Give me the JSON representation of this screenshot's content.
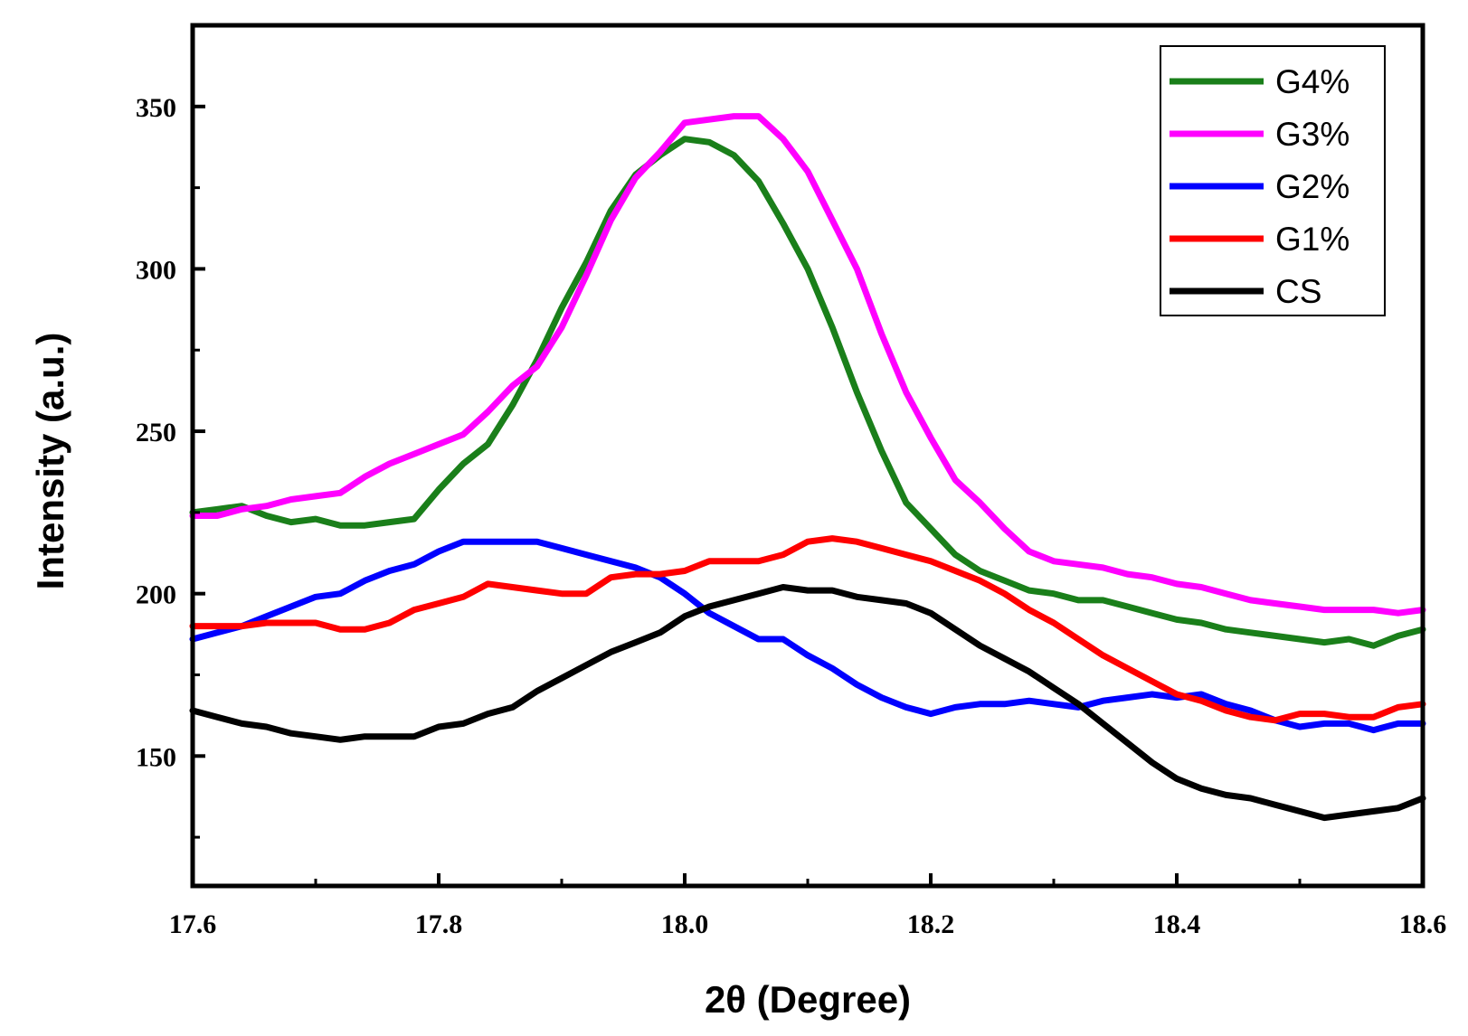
{
  "chart_data": {
    "type": "line",
    "title": "",
    "xlabel": "2θ (Degree)",
    "ylabel": "Intensity (a.u.)",
    "xlim": [
      17.6,
      18.6
    ],
    "ylim": [
      110,
      375
    ],
    "xticks": [
      17.6,
      17.8,
      18.0,
      18.2,
      18.4,
      18.6
    ],
    "xtick_labels": [
      "17.6",
      "17.8",
      "18.0",
      "18.2",
      "18.4",
      "18.6"
    ],
    "yticks": [
      150,
      200,
      250,
      300,
      350
    ],
    "ytick_labels": [
      "150",
      "200",
      "250",
      "300",
      "350"
    ],
    "grid": false,
    "legend_position": "top-right",
    "series": [
      {
        "name": "G4%",
        "color": "#1a7f1a",
        "x": [
          17.6,
          17.62,
          17.64,
          17.66,
          17.68,
          17.7,
          17.72,
          17.74,
          17.76,
          17.78,
          17.8,
          17.82,
          17.84,
          17.86,
          17.88,
          17.9,
          17.92,
          17.94,
          17.96,
          17.98,
          18.0,
          18.02,
          18.04,
          18.06,
          18.08,
          18.1,
          18.12,
          18.14,
          18.16,
          18.18,
          18.2,
          18.22,
          18.24,
          18.26,
          18.28,
          18.3,
          18.32,
          18.34,
          18.36,
          18.38,
          18.4,
          18.42,
          18.44,
          18.46,
          18.48,
          18.5,
          18.52,
          18.54,
          18.56,
          18.58,
          18.6
        ],
        "y": [
          225,
          226,
          227,
          224,
          222,
          223,
          221,
          221,
          222,
          223,
          232,
          240,
          246,
          258,
          272,
          288,
          302,
          318,
          329,
          335,
          340,
          339,
          335,
          327,
          314,
          300,
          282,
          262,
          244,
          228,
          220,
          212,
          207,
          204,
          201,
          200,
          198,
          198,
          196,
          194,
          192,
          191,
          189,
          188,
          187,
          186,
          185,
          186,
          184,
          187,
          189
        ]
      },
      {
        "name": "G3%",
        "color": "#ff00ff",
        "x": [
          17.6,
          17.62,
          17.64,
          17.66,
          17.68,
          17.7,
          17.72,
          17.74,
          17.76,
          17.78,
          17.8,
          17.82,
          17.84,
          17.86,
          17.88,
          17.9,
          17.92,
          17.94,
          17.96,
          17.98,
          18.0,
          18.02,
          18.04,
          18.06,
          18.08,
          18.1,
          18.12,
          18.14,
          18.16,
          18.18,
          18.2,
          18.22,
          18.24,
          18.26,
          18.28,
          18.3,
          18.32,
          18.34,
          18.36,
          18.38,
          18.4,
          18.42,
          18.44,
          18.46,
          18.48,
          18.5,
          18.52,
          18.54,
          18.56,
          18.58,
          18.6
        ],
        "y": [
          224,
          224,
          226,
          227,
          229,
          230,
          231,
          236,
          240,
          243,
          246,
          249,
          256,
          264,
          270,
          282,
          298,
          315,
          328,
          336,
          345,
          346,
          347,
          347,
          340,
          330,
          315,
          300,
          280,
          262,
          248,
          235,
          228,
          220,
          213,
          210,
          209,
          208,
          206,
          205,
          203,
          202,
          200,
          198,
          197,
          196,
          195,
          195,
          195,
          194,
          195
        ]
      },
      {
        "name": "G2%",
        "color": "#0000ff",
        "x": [
          17.6,
          17.62,
          17.64,
          17.66,
          17.68,
          17.7,
          17.72,
          17.74,
          17.76,
          17.78,
          17.8,
          17.82,
          17.84,
          17.86,
          17.88,
          17.9,
          17.92,
          17.94,
          17.96,
          17.98,
          18.0,
          18.02,
          18.04,
          18.06,
          18.08,
          18.1,
          18.12,
          18.14,
          18.16,
          18.18,
          18.2,
          18.22,
          18.24,
          18.26,
          18.28,
          18.3,
          18.32,
          18.34,
          18.36,
          18.38,
          18.4,
          18.42,
          18.44,
          18.46,
          18.48,
          18.5,
          18.52,
          18.54,
          18.56,
          18.58,
          18.6
        ],
        "y": [
          186,
          188,
          190,
          193,
          196,
          199,
          200,
          204,
          207,
          209,
          213,
          216,
          216,
          216,
          216,
          214,
          212,
          210,
          208,
          205,
          200,
          194,
          190,
          186,
          186,
          181,
          177,
          172,
          168,
          165,
          163,
          165,
          166,
          166,
          167,
          166,
          165,
          167,
          168,
          169,
          168,
          169,
          166,
          164,
          161,
          159,
          160,
          160,
          158,
          160,
          160
        ]
      },
      {
        "name": "G1%",
        "color": "#ff0000",
        "x": [
          17.6,
          17.62,
          17.64,
          17.66,
          17.68,
          17.7,
          17.72,
          17.74,
          17.76,
          17.78,
          17.8,
          17.82,
          17.84,
          17.86,
          17.88,
          17.9,
          17.92,
          17.94,
          17.96,
          17.98,
          18.0,
          18.02,
          18.04,
          18.06,
          18.08,
          18.1,
          18.12,
          18.14,
          18.16,
          18.18,
          18.2,
          18.22,
          18.24,
          18.26,
          18.28,
          18.3,
          18.32,
          18.34,
          18.36,
          18.38,
          18.4,
          18.42,
          18.44,
          18.46,
          18.48,
          18.5,
          18.52,
          18.54,
          18.56,
          18.58,
          18.6
        ],
        "y": [
          190,
          190,
          190,
          191,
          191,
          191,
          189,
          189,
          191,
          195,
          197,
          199,
          203,
          202,
          201,
          200,
          200,
          205,
          206,
          206,
          207,
          210,
          210,
          210,
          212,
          216,
          217,
          216,
          214,
          212,
          210,
          207,
          204,
          200,
          195,
          191,
          186,
          181,
          177,
          173,
          169,
          167,
          164,
          162,
          161,
          163,
          163,
          162,
          162,
          165,
          166
        ]
      },
      {
        "name": "CS",
        "color": "#000000",
        "x": [
          17.6,
          17.62,
          17.64,
          17.66,
          17.68,
          17.7,
          17.72,
          17.74,
          17.76,
          17.78,
          17.8,
          17.82,
          17.84,
          17.86,
          17.88,
          17.9,
          17.92,
          17.94,
          17.96,
          17.98,
          18.0,
          18.02,
          18.04,
          18.06,
          18.08,
          18.1,
          18.12,
          18.14,
          18.16,
          18.18,
          18.2,
          18.22,
          18.24,
          18.26,
          18.28,
          18.3,
          18.32,
          18.34,
          18.36,
          18.38,
          18.4,
          18.42,
          18.44,
          18.46,
          18.48,
          18.5,
          18.52,
          18.54,
          18.56,
          18.58,
          18.6
        ],
        "y": [
          164,
          162,
          160,
          159,
          157,
          156,
          155,
          156,
          156,
          156,
          159,
          160,
          163,
          165,
          170,
          174,
          178,
          182,
          185,
          188,
          193,
          196,
          198,
          200,
          202,
          201,
          201,
          199,
          198,
          197,
          194,
          189,
          184,
          180,
          176,
          171,
          166,
          160,
          154,
          148,
          143,
          140,
          138,
          137,
          135,
          133,
          131,
          132,
          133,
          134,
          137
        ]
      }
    ]
  }
}
